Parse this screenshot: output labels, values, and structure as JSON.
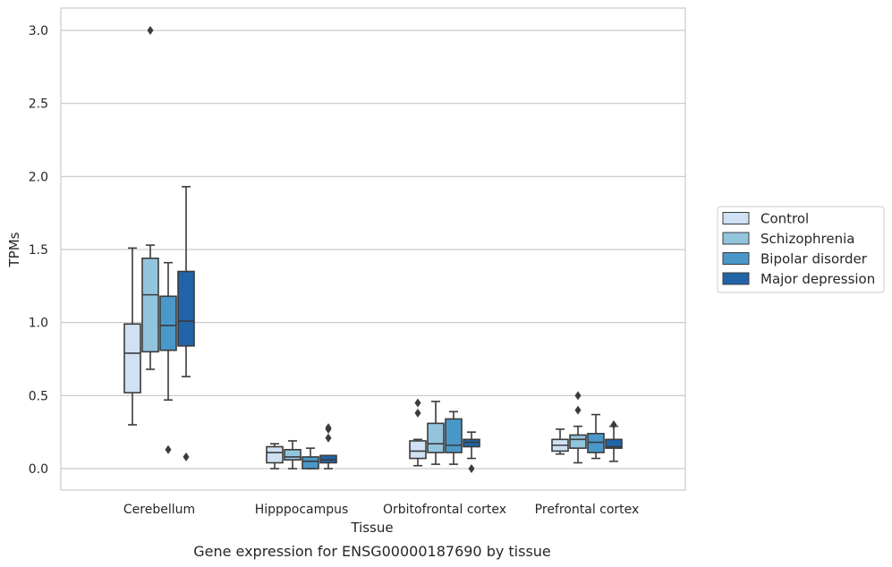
{
  "chart_data": {
    "type": "box",
    "xlabel": "Tissue",
    "ylabel": "TPMs",
    "caption": "Gene expression for ENSG00000187690 by tissue",
    "ylim": [
      -0.15,
      3.15
    ],
    "yticks": [
      "0.0",
      "0.5",
      "1.0",
      "1.5",
      "2.0",
      "2.5",
      "3.0"
    ],
    "grid": "horizontal",
    "legend_position": "right",
    "categories": [
      "Cerebellum",
      "Hipppocampus",
      "Orbitofrontal cortex",
      "Prefrontal cortex"
    ],
    "series": [
      {
        "name": "Control",
        "color": "#cfe1f2",
        "boxes": [
          {
            "whisker_low": 0.3,
            "q1": 0.52,
            "median": 0.79,
            "q3": 0.99,
            "whisker_high": 1.51,
            "outliers": []
          },
          {
            "whisker_low": 0.0,
            "q1": 0.04,
            "median": 0.11,
            "q3": 0.15,
            "whisker_high": 0.17,
            "outliers": []
          },
          {
            "whisker_low": 0.02,
            "q1": 0.07,
            "median": 0.12,
            "q3": 0.19,
            "whisker_high": 0.2,
            "outliers": [
              0.38,
              0.45
            ]
          },
          {
            "whisker_low": 0.1,
            "q1": 0.12,
            "median": 0.16,
            "q3": 0.2,
            "whisker_high": 0.27,
            "outliers": []
          }
        ]
      },
      {
        "name": "Schizophrenia",
        "color": "#93c4de",
        "boxes": [
          {
            "whisker_low": 0.68,
            "q1": 0.8,
            "median": 1.19,
            "q3": 1.44,
            "whisker_high": 1.53,
            "outliers": [
              3.0
            ]
          },
          {
            "whisker_low": 0.0,
            "q1": 0.06,
            "median": 0.08,
            "q3": 0.13,
            "whisker_high": 0.19,
            "outliers": []
          },
          {
            "whisker_low": 0.03,
            "q1": 0.11,
            "median": 0.17,
            "q3": 0.31,
            "whisker_high": 0.46,
            "outliers": []
          },
          {
            "whisker_low": 0.04,
            "q1": 0.14,
            "median": 0.2,
            "q3": 0.23,
            "whisker_high": 0.29,
            "outliers": [
              0.4,
              0.5
            ]
          }
        ]
      },
      {
        "name": "Bipolar disorder",
        "color": "#4a98c9",
        "boxes": [
          {
            "whisker_low": 0.47,
            "q1": 0.81,
            "median": 0.98,
            "q3": 1.18,
            "whisker_high": 1.41,
            "outliers": [
              0.13
            ]
          },
          {
            "whisker_low": 0.0,
            "q1": 0.0,
            "median": 0.05,
            "q3": 0.08,
            "whisker_high": 0.14,
            "outliers": []
          },
          {
            "whisker_low": 0.03,
            "q1": 0.11,
            "median": 0.16,
            "q3": 0.34,
            "whisker_high": 0.39,
            "outliers": []
          },
          {
            "whisker_low": 0.07,
            "q1": 0.11,
            "median": 0.18,
            "q3": 0.24,
            "whisker_high": 0.37,
            "outliers": []
          }
        ]
      },
      {
        "name": "Major depression",
        "color": "#2164a8",
        "boxes": [
          {
            "whisker_low": 0.63,
            "q1": 0.84,
            "median": 1.01,
            "q3": 1.35,
            "whisker_high": 1.93,
            "outliers": [
              0.08
            ]
          },
          {
            "whisker_low": 0.0,
            "q1": 0.04,
            "median": 0.06,
            "q3": 0.09,
            "whisker_high": 0.09,
            "outliers": [
              0.21,
              0.27,
              0.28
            ]
          },
          {
            "whisker_low": 0.07,
            "q1": 0.15,
            "median": 0.18,
            "q3": 0.2,
            "whisker_high": 0.25,
            "outliers": [
              0.0
            ]
          },
          {
            "whisker_low": 0.05,
            "q1": 0.14,
            "median": 0.15,
            "q3": 0.2,
            "whisker_high": 0.29,
            "outliers": [
              0.3
            ]
          }
        ]
      }
    ]
  }
}
